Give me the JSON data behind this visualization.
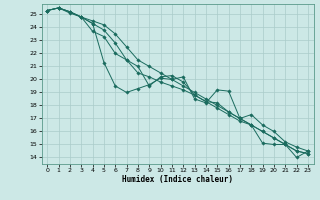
{
  "title": "",
  "xlabel": "Humidex (Indice chaleur)",
  "ylabel": "",
  "bg_color": "#cce8e6",
  "grid_color": "#aaccca",
  "line_color": "#1a6b5e",
  "xlim": [
    -0.5,
    23.5
  ],
  "ylim": [
    13.5,
    25.8
  ],
  "xticks": [
    0,
    1,
    2,
    3,
    4,
    5,
    6,
    7,
    8,
    9,
    10,
    11,
    12,
    13,
    14,
    15,
    16,
    17,
    18,
    19,
    20,
    21,
    22,
    23
  ],
  "yticks": [
    14,
    15,
    16,
    17,
    18,
    19,
    20,
    21,
    22,
    23,
    24,
    25
  ],
  "series": [
    [
      25.3,
      25.5,
      25.1,
      24.8,
      24.3,
      21.3,
      19.5,
      19.0,
      19.3,
      19.6,
      20.1,
      20.0,
      20.2,
      18.5,
      18.2,
      19.2,
      19.1,
      17.0,
      16.5,
      15.1,
      15.0,
      15.0,
      14.0,
      14.5
    ],
    [
      25.3,
      25.5,
      25.2,
      24.8,
      23.7,
      23.3,
      22.0,
      21.5,
      21.0,
      19.5,
      20.2,
      20.3,
      19.8,
      18.8,
      18.3,
      18.2,
      17.5,
      17.0,
      17.3,
      16.5,
      16.0,
      15.2,
      14.8,
      14.5
    ],
    [
      25.3,
      25.5,
      25.2,
      24.8,
      24.3,
      23.8,
      22.8,
      21.5,
      20.5,
      20.2,
      19.8,
      19.5,
      19.2,
      18.8,
      18.3,
      17.8,
      17.3,
      16.8,
      16.5,
      16.0,
      15.5,
      15.0,
      14.5,
      14.3
    ],
    [
      25.3,
      25.5,
      25.2,
      24.8,
      24.5,
      24.2,
      23.5,
      22.5,
      21.5,
      21.0,
      20.5,
      20.0,
      19.5,
      19.0,
      18.5,
      18.0,
      17.5,
      17.0,
      16.5,
      16.0,
      15.5,
      15.0,
      14.5,
      14.3
    ]
  ]
}
